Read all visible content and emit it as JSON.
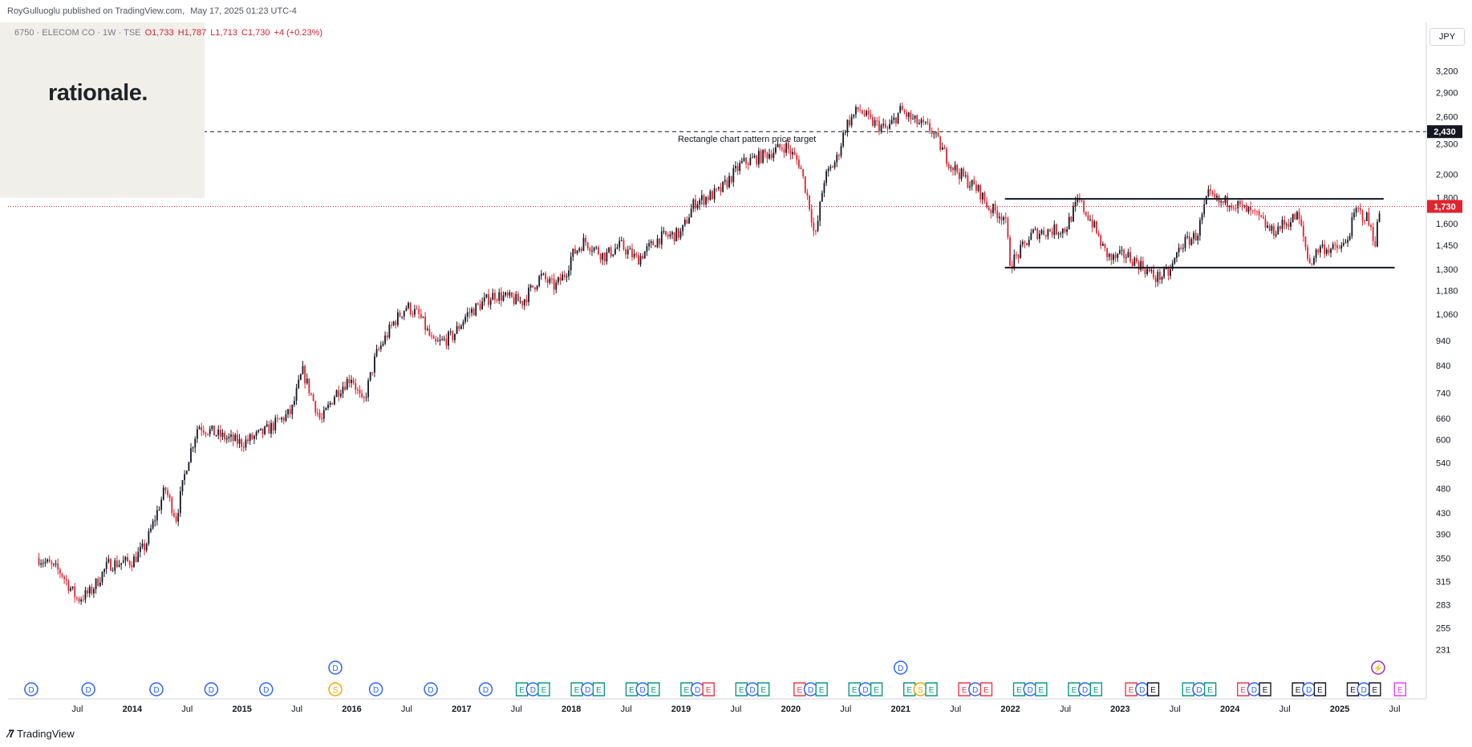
{
  "header": {
    "publisher": "RoyGulluoglu published on TradingView.com,",
    "date": "May 17, 2025 01:23 UTC-4"
  },
  "legend": {
    "symbol": "6750 · ELECOM CO · 1W · TSE",
    "open": "O1,733",
    "high": "H1,787",
    "low": "L1,713",
    "close": "C1,730",
    "change": "+4 (+0.23%)"
  },
  "logo": {
    "text": "rationale."
  },
  "footer": {
    "brand": "TradingView",
    "icon": "tradingview-logo-icon"
  },
  "currency": "JPY",
  "colors": {
    "up": "#131722",
    "down": "#e0242f",
    "price_line": "#e0242f",
    "label_bg": "#131722",
    "dividend": "#2962ff",
    "earnings_green": "#089981",
    "earnings_red": "#f23645",
    "earnings_gray": "#131722",
    "split": "#f7a600",
    "flash": "#9c27b0"
  },
  "chart_data": {
    "type": "candlestick",
    "symbol": "6750",
    "timeframe": "1W",
    "log_scale": true,
    "ylim": [
      200,
      3450
    ],
    "y_ticks": [
      231,
      255,
      283,
      315,
      350,
      390,
      430,
      480,
      540,
      600,
      660,
      740,
      840,
      940,
      1060,
      1180,
      1300,
      1450,
      1600,
      1800,
      2000,
      2300,
      2600,
      2900,
      3200
    ],
    "y_tick_labels": [
      "231",
      "255",
      "283",
      "315",
      "350",
      "390",
      "430",
      "480",
      "540",
      "600",
      "660",
      "740",
      "840",
      "940",
      "1,060",
      "1,180",
      "1,300",
      "1,450",
      "1,600",
      "1,800",
      "2,000",
      "2,300",
      "2,600",
      "2,900",
      "3,200"
    ],
    "x_ticks": [
      {
        "t": 2013.5,
        "label": "Jul",
        "bold": false
      },
      {
        "t": 2014.0,
        "label": "2014",
        "bold": true
      },
      {
        "t": 2014.5,
        "label": "Jul",
        "bold": false
      },
      {
        "t": 2015.0,
        "label": "2015",
        "bold": true
      },
      {
        "t": 2015.5,
        "label": "Jul",
        "bold": false
      },
      {
        "t": 2016.0,
        "label": "2016",
        "bold": true
      },
      {
        "t": 2016.5,
        "label": "Jul",
        "bold": false
      },
      {
        "t": 2017.0,
        "label": "2017",
        "bold": true
      },
      {
        "t": 2017.5,
        "label": "Jul",
        "bold": false
      },
      {
        "t": 2018.0,
        "label": "2018",
        "bold": true
      },
      {
        "t": 2018.5,
        "label": "Jul",
        "bold": false
      },
      {
        "t": 2019.0,
        "label": "2019",
        "bold": true
      },
      {
        "t": 2019.5,
        "label": "Jul",
        "bold": false
      },
      {
        "t": 2020.0,
        "label": "2020",
        "bold": true
      },
      {
        "t": 2020.5,
        "label": "Jul",
        "bold": false
      },
      {
        "t": 2021.0,
        "label": "2021",
        "bold": true
      },
      {
        "t": 2021.5,
        "label": "Jul",
        "bold": false
      },
      {
        "t": 2022.0,
        "label": "2022",
        "bold": true
      },
      {
        "t": 2022.5,
        "label": "Jul",
        "bold": false
      },
      {
        "t": 2023.0,
        "label": "2023",
        "bold": true
      },
      {
        "t": 2023.5,
        "label": "Jul",
        "bold": false
      },
      {
        "t": 2024.0,
        "label": "2024",
        "bold": true
      },
      {
        "t": 2024.5,
        "label": "Jul",
        "bold": false
      },
      {
        "t": 2025.0,
        "label": "2025",
        "bold": true
      },
      {
        "t": 2025.5,
        "label": "Jul",
        "bold": false
      }
    ],
    "last_price": 1730,
    "last_price_label": "1,730",
    "path": [
      [
        2013.15,
        350
      ],
      [
        2013.35,
        328
      ],
      [
        2013.5,
        290
      ],
      [
        2013.62,
        300
      ],
      [
        2013.78,
        340
      ],
      [
        2014.0,
        345
      ],
      [
        2014.12,
        370
      ],
      [
        2014.3,
        480
      ],
      [
        2014.4,
        420
      ],
      [
        2014.5,
        540
      ],
      [
        2014.6,
        640
      ],
      [
        2014.8,
        610
      ],
      [
        2015.0,
        590
      ],
      [
        2015.2,
        620
      ],
      [
        2015.45,
        680
      ],
      [
        2015.55,
        820
      ],
      [
        2015.72,
        650
      ],
      [
        2015.85,
        740
      ],
      [
        2016.0,
        800
      ],
      [
        2016.1,
        700
      ],
      [
        2016.22,
        880
      ],
      [
        2016.38,
        1020
      ],
      [
        2016.5,
        1100
      ],
      [
        2016.62,
        1050
      ],
      [
        2016.75,
        920
      ],
      [
        2016.92,
        960
      ],
      [
        2017.05,
        1060
      ],
      [
        2017.3,
        1160
      ],
      [
        2017.55,
        1120
      ],
      [
        2017.72,
        1260
      ],
      [
        2017.85,
        1200
      ],
      [
        2017.95,
        1280
      ],
      [
        2018.0,
        1380
      ],
      [
        2018.12,
        1480
      ],
      [
        2018.3,
        1380
      ],
      [
        2018.45,
        1450
      ],
      [
        2018.6,
        1360
      ],
      [
        2018.8,
        1500
      ],
      [
        2019.0,
        1530
      ],
      [
        2019.12,
        1760
      ],
      [
        2019.35,
        1850
      ],
      [
        2019.55,
        2100
      ],
      [
        2019.75,
        2180
      ],
      [
        2019.95,
        2280
      ],
      [
        2020.08,
        2100
      ],
      [
        2020.18,
        1700
      ],
      [
        2020.22,
        1480
      ],
      [
        2020.3,
        1950
      ],
      [
        2020.42,
        2150
      ],
      [
        2020.5,
        2500
      ],
      [
        2020.62,
        2700
      ],
      [
        2020.72,
        2550
      ],
      [
        2020.88,
        2450
      ],
      [
        2021.0,
        2680
      ],
      [
        2021.12,
        2550
      ],
      [
        2021.28,
        2450
      ],
      [
        2021.45,
        2100
      ],
      [
        2021.6,
        1950
      ],
      [
        2021.72,
        1850
      ],
      [
        2021.8,
        1720
      ],
      [
        2021.95,
        1650
      ],
      [
        2022.0,
        1330
      ],
      [
        2022.08,
        1400
      ],
      [
        2022.2,
        1530
      ],
      [
        2022.35,
        1550
      ],
      [
        2022.5,
        1560
      ],
      [
        2022.62,
        1780
      ],
      [
        2022.75,
        1600
      ],
      [
        2022.85,
        1420
      ],
      [
        2022.92,
        1360
      ],
      [
        2023.05,
        1390
      ],
      [
        2023.2,
        1320
      ],
      [
        2023.32,
        1250
      ],
      [
        2023.45,
        1280
      ],
      [
        2023.55,
        1450
      ],
      [
        2023.7,
        1520
      ],
      [
        2023.8,
        1820
      ],
      [
        2023.92,
        1750
      ],
      [
        2024.0,
        1780
      ],
      [
        2024.1,
        1720
      ],
      [
        2024.25,
        1650
      ],
      [
        2024.38,
        1540
      ],
      [
        2024.5,
        1600
      ],
      [
        2024.62,
        1660
      ],
      [
        2024.68,
        1470
      ],
      [
        2024.72,
        1330
      ],
      [
        2024.82,
        1440
      ],
      [
        2024.95,
        1420
      ],
      [
        2025.05,
        1450
      ],
      [
        2025.15,
        1700
      ],
      [
        2025.25,
        1640
      ],
      [
        2025.32,
        1470
      ],
      [
        2025.37,
        1730
      ]
    ],
    "annotations": [
      {
        "type": "hline",
        "style": "dashed",
        "value": 2430,
        "label": "2,430",
        "text": "Rectangle chart pattern price target",
        "text_t": 2019.6
      },
      {
        "type": "segment",
        "t1": 2021.95,
        "t2": 2025.4,
        "value": 1790
      },
      {
        "type": "segment",
        "t1": 2021.95,
        "t2": 2025.5,
        "value": 1310
      }
    ],
    "event_rows": [
      {
        "row": "upper",
        "items": [
          {
            "t": 2015.85,
            "kind": "D"
          },
          {
            "t": 2021.0,
            "kind": "D"
          },
          {
            "t": 2025.35,
            "kind": "flash"
          }
        ]
      },
      {
        "row": "lower",
        "items": [
          {
            "t": 2013.08,
            "kind": "D"
          },
          {
            "t": 2013.6,
            "kind": "D"
          },
          {
            "t": 2014.22,
            "kind": "D"
          },
          {
            "t": 2014.72,
            "kind": "D"
          },
          {
            "t": 2015.22,
            "kind": "D"
          },
          {
            "t": 2015.85,
            "kind": "S"
          },
          {
            "t": 2016.22,
            "kind": "D"
          },
          {
            "t": 2016.72,
            "kind": "D"
          },
          {
            "t": 2017.22,
            "kind": "D"
          },
          {
            "t": 2017.55,
            "kind": "E",
            "c": "g"
          },
          {
            "t": 2017.65,
            "kind": "D"
          },
          {
            "t": 2017.75,
            "kind": "E",
            "c": "g"
          },
          {
            "t": 2018.05,
            "kind": "E",
            "c": "g"
          },
          {
            "t": 2018.15,
            "kind": "D"
          },
          {
            "t": 2018.25,
            "kind": "E",
            "c": "g"
          },
          {
            "t": 2018.55,
            "kind": "E",
            "c": "g"
          },
          {
            "t": 2018.65,
            "kind": "D"
          },
          {
            "t": 2018.75,
            "kind": "E",
            "c": "g"
          },
          {
            "t": 2019.05,
            "kind": "E",
            "c": "g"
          },
          {
            "t": 2019.15,
            "kind": "D"
          },
          {
            "t": 2019.25,
            "kind": "E",
            "c": "r"
          },
          {
            "t": 2019.55,
            "kind": "E",
            "c": "g"
          },
          {
            "t": 2019.65,
            "kind": "D"
          },
          {
            "t": 2019.75,
            "kind": "E",
            "c": "g"
          },
          {
            "t": 2020.08,
            "kind": "E",
            "c": "r"
          },
          {
            "t": 2020.18,
            "kind": "D"
          },
          {
            "t": 2020.28,
            "kind": "E",
            "c": "g"
          },
          {
            "t": 2020.58,
            "kind": "E",
            "c": "g"
          },
          {
            "t": 2020.68,
            "kind": "D"
          },
          {
            "t": 2020.78,
            "kind": "E",
            "c": "g"
          },
          {
            "t": 2021.08,
            "kind": "E",
            "c": "g"
          },
          {
            "t": 2021.18,
            "kind": "S"
          },
          {
            "t": 2021.28,
            "kind": "E",
            "c": "g"
          },
          {
            "t": 2021.58,
            "kind": "E",
            "c": "r"
          },
          {
            "t": 2021.68,
            "kind": "D"
          },
          {
            "t": 2021.78,
            "kind": "E",
            "c": "r"
          },
          {
            "t": 2022.08,
            "kind": "E",
            "c": "g"
          },
          {
            "t": 2022.18,
            "kind": "D"
          },
          {
            "t": 2022.28,
            "kind": "E",
            "c": "g"
          },
          {
            "t": 2022.58,
            "kind": "E",
            "c": "g"
          },
          {
            "t": 2022.68,
            "kind": "D"
          },
          {
            "t": 2022.78,
            "kind": "E",
            "c": "g"
          },
          {
            "t": 2023.1,
            "kind": "E",
            "c": "r"
          },
          {
            "t": 2023.2,
            "kind": "D"
          },
          {
            "t": 2023.3,
            "kind": "E",
            "c": "k"
          },
          {
            "t": 2023.62,
            "kind": "E",
            "c": "g"
          },
          {
            "t": 2023.72,
            "kind": "D"
          },
          {
            "t": 2023.82,
            "kind": "E",
            "c": "g"
          },
          {
            "t": 2024.12,
            "kind": "E",
            "c": "r"
          },
          {
            "t": 2024.22,
            "kind": "D"
          },
          {
            "t": 2024.32,
            "kind": "E",
            "c": "k"
          },
          {
            "t": 2024.62,
            "kind": "E",
            "c": "k"
          },
          {
            "t": 2024.72,
            "kind": "D"
          },
          {
            "t": 2024.82,
            "kind": "E",
            "c": "k"
          },
          {
            "t": 2025.12,
            "kind": "E",
            "c": "k"
          },
          {
            "t": 2025.22,
            "kind": "D"
          },
          {
            "t": 2025.32,
            "kind": "E",
            "c": "k"
          },
          {
            "t": 2025.55,
            "kind": "E",
            "c": "p"
          }
        ]
      }
    ]
  }
}
